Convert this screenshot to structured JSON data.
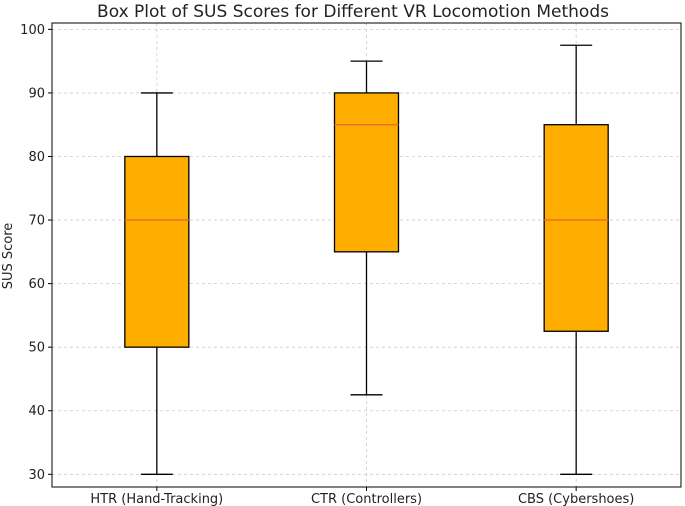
{
  "chart_data": {
    "type": "box",
    "title": "Box Plot of SUS Scores for Different VR Locomotion Methods",
    "xlabel": "",
    "ylabel": "SUS Score",
    "ylim": [
      28,
      101
    ],
    "yticks": [
      30,
      40,
      50,
      60,
      70,
      80,
      90,
      100
    ],
    "grid": true,
    "categories": [
      "HTR (Hand-Tracking)",
      "CTR (Controllers)",
      "CBS (Cybershoes)"
    ],
    "boxes": [
      {
        "name": "HTR (Hand-Tracking)",
        "whisker_low": 30,
        "q1": 50,
        "median": 70,
        "q3": 80,
        "whisker_high": 90
      },
      {
        "name": "CTR (Controllers)",
        "whisker_low": 42.5,
        "q1": 65,
        "median": 85,
        "q3": 90,
        "whisker_high": 95
      },
      {
        "name": "CBS (Cybershoes)",
        "whisker_low": 30,
        "q1": 52.5,
        "median": 70,
        "q3": 85,
        "whisker_high": 97.5
      }
    ],
    "colors": {
      "box_fill": "#FFAE00",
      "box_edge": "#000000",
      "median": "#E8702A",
      "whisker": "#000000",
      "grid": "#cccccc"
    }
  }
}
